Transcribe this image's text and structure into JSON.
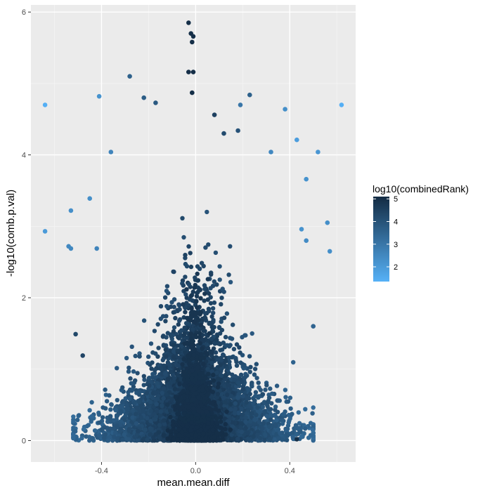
{
  "chart_data": {
    "type": "scatter",
    "title": "",
    "xlabel": "mean.mean.diff",
    "ylabel": "-log10(comb.p.val)",
    "xlim": [
      -0.7,
      0.68
    ],
    "ylim": [
      -0.3,
      6.1
    ],
    "xticks": [
      -0.4,
      0.0,
      0.4
    ],
    "xtick_labels": [
      "-0.4",
      "0.0",
      "0.4"
    ],
    "yticks": [
      0,
      2,
      4,
      6
    ],
    "ytick_labels": [
      "0",
      "2",
      "4",
      "6"
    ],
    "grid": true,
    "panel_background": "#ebebeb",
    "legend": {
      "title": "log10(combinedRank)",
      "placement": "right",
      "ticks": [
        2,
        3,
        4,
        5
      ],
      "tick_labels": [
        "2",
        "3",
        "4",
        "5"
      ],
      "range": [
        1.35,
        5.1
      ],
      "color_low": "#56b1f7",
      "color_high": "#132b43"
    },
    "notes": "Volcano-style cloud of many thousands of points; only notable outlying points listed. c = log10(combinedRank).",
    "points": [
      {
        "x": -0.64,
        "y": 4.7,
        "c": 1.4
      },
      {
        "x": 0.62,
        "y": 4.7,
        "c": 1.4
      },
      {
        "x": -0.64,
        "y": 2.93,
        "c": 2.0
      },
      {
        "x": -0.41,
        "y": 4.82,
        "c": 2.2
      },
      {
        "x": 0.43,
        "y": 4.21,
        "c": 1.9
      },
      {
        "x": 0.52,
        "y": 4.04,
        "c": 2.1
      },
      {
        "x": 0.47,
        "y": 3.66,
        "c": 2.2
      },
      {
        "x": 0.38,
        "y": 4.64,
        "c": 2.3
      },
      {
        "x": -0.53,
        "y": 3.22,
        "c": 2.3
      },
      {
        "x": -0.45,
        "y": 3.39,
        "c": 2.3
      },
      {
        "x": -0.36,
        "y": 4.04,
        "c": 2.6
      },
      {
        "x": 0.32,
        "y": 4.04,
        "c": 2.5
      },
      {
        "x": 0.45,
        "y": 2.96,
        "c": 2.2
      },
      {
        "x": 0.47,
        "y": 2.8,
        "c": 2.4
      },
      {
        "x": 0.56,
        "y": 3.05,
        "c": 2.3
      },
      {
        "x": 0.57,
        "y": 2.65,
        "c": 2.3
      },
      {
        "x": -0.54,
        "y": 2.72,
        "c": 2.5
      },
      {
        "x": -0.53,
        "y": 2.69,
        "c": 2.5
      },
      {
        "x": -0.42,
        "y": 2.69,
        "c": 2.6
      },
      {
        "x": -0.28,
        "y": 5.1,
        "c": 3.6
      },
      {
        "x": -0.22,
        "y": 4.8,
        "c": 3.7
      },
      {
        "x": -0.17,
        "y": 4.73,
        "c": 3.8
      },
      {
        "x": 0.19,
        "y": 4.7,
        "c": 3.0
      },
      {
        "x": 0.23,
        "y": 4.84,
        "c": 3.6
      },
      {
        "x": 0.08,
        "y": 4.56,
        "c": 4.5
      },
      {
        "x": -0.03,
        "y": 5.85,
        "c": 5.0
      },
      {
        "x": -0.02,
        "y": 5.7,
        "c": 5.0
      },
      {
        "x": -0.01,
        "y": 5.66,
        "c": 5.0
      },
      {
        "x": -0.015,
        "y": 5.58,
        "c": 5.0
      },
      {
        "x": -0.03,
        "y": 5.16,
        "c": 5.0
      },
      {
        "x": -0.01,
        "y": 5.16,
        "c": 5.0
      },
      {
        "x": -0.015,
        "y": 4.87,
        "c": 5.0
      },
      {
        "x": 0.12,
        "y": 4.3,
        "c": 4.2
      },
      {
        "x": 0.18,
        "y": 4.34,
        "c": 4.0
      },
      {
        "x": -0.48,
        "y": 1.19,
        "c": 4.4
      },
      {
        "x": -0.51,
        "y": 1.49,
        "c": 4.3
      },
      {
        "x": 0.5,
        "y": 1.6,
        "c": 3.5
      },
      {
        "x": 0.43,
        "y": 0.02,
        "c": 5.0
      }
    ]
  }
}
